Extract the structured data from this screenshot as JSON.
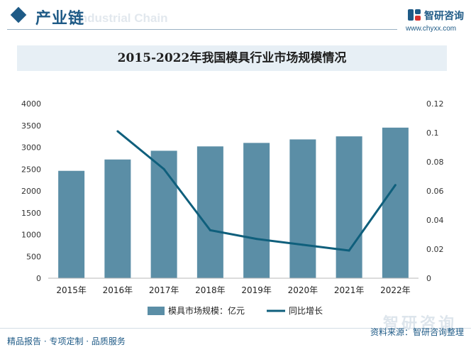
{
  "header": {
    "section_title": "产业链",
    "section_ghost": "Industrial Chain",
    "logo_name": "智研咨询",
    "logo_url": "www.chyxx.com"
  },
  "colors": {
    "brand": "#1e5a86",
    "bar": "#5b8ea6",
    "line": "#0f5f7c"
  },
  "chart_data": {
    "type": "bar",
    "title": "2015-2022年我国模具行业市场规模情况",
    "categories": [
      "2015年",
      "2016年",
      "2017年",
      "2018年",
      "2019年",
      "2020年",
      "2021年",
      "2022年"
    ],
    "series": [
      {
        "name": "模具市场规模：亿元",
        "type": "bar",
        "axis": "left",
        "values": [
          2460,
          2720,
          2920,
          3020,
          3100,
          3180,
          3250,
          3450
        ]
      },
      {
        "name": "同比增长",
        "type": "line",
        "axis": "right",
        "values": [
          null,
          0.101,
          0.075,
          0.033,
          0.027,
          0.023,
          0.019,
          0.064
        ]
      }
    ],
    "y_left": {
      "min": 0,
      "max": 4000,
      "ticks": [
        "0",
        "500",
        "1000",
        "1500",
        "2000",
        "2500",
        "3000",
        "3500",
        "4000"
      ]
    },
    "y_right": {
      "min": 0,
      "max": 0.12,
      "ticks": [
        "0",
        "0.02",
        "0.04",
        "0.06",
        "0.08",
        "0.1",
        "0.12"
      ]
    },
    "legend_position": "bottom"
  },
  "footer": {
    "left": "精品报告 · 专项定制 · 品质服务",
    "right": "资料来源：智研咨询整理",
    "watermark": "智研咨询"
  }
}
